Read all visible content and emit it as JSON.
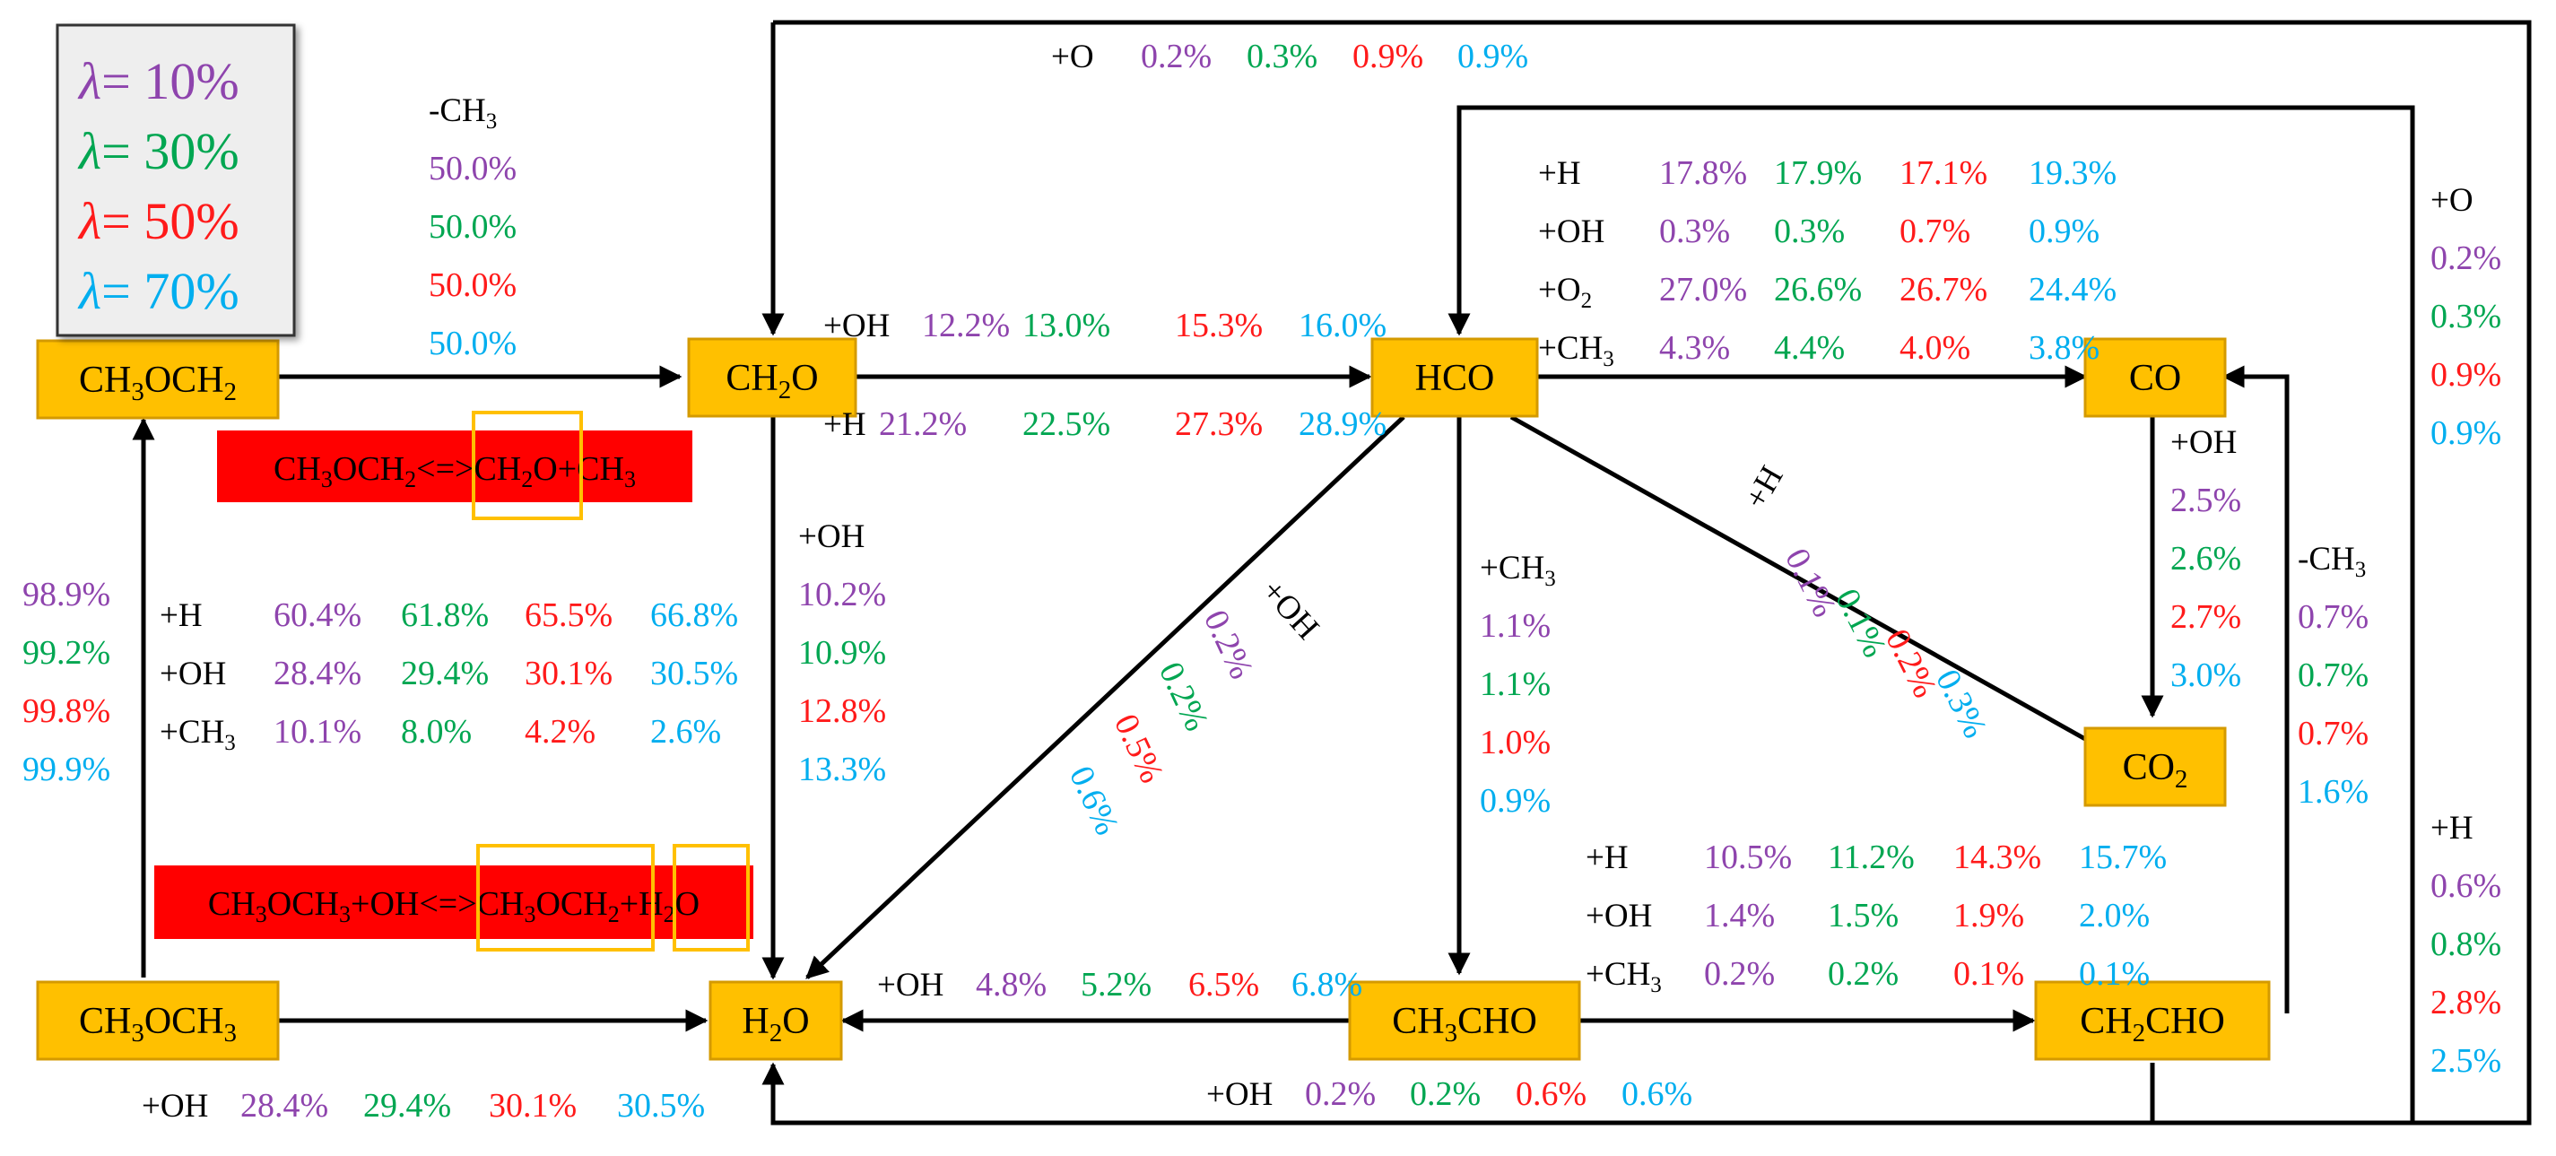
{
  "colors": {
    "l10": "#8e44ad",
    "l30": "#00a651",
    "l50": "#ff1a1a",
    "l70": "#00aeef",
    "label": "#000000",
    "species_fill": "#ffc000",
    "species_border": "#d49a00",
    "reaction_fill": "#ff0000",
    "highlight_box": "#ffc000",
    "legend_fill": "#eeeeee"
  },
  "legend": {
    "symbol": "λ",
    "entries": [
      "= 10%",
      "= 30%",
      "= 50%",
      "= 70%"
    ]
  },
  "species": {
    "ch3och2": "CH3OCH2",
    "ch2o": "CH2O",
    "hco": "HCO",
    "co": "CO",
    "co2": "CO2",
    "ch3och3": "CH3OCH3",
    "h2o": "H2O",
    "ch3cho": "CH3CHO",
    "ch2cho": "CH2CHO"
  },
  "reaction_boxes": {
    "top": "CH3OCH2<=>CH2O+CH3",
    "bottom": "CH3OCH3+OH<=>CH3OCH2+H2O"
  },
  "annotations": {
    "ch3och2_ch2o": {
      "label": "-CH3",
      "values": [
        "50.0%",
        "50.0%",
        "50.0%",
        "50.0%"
      ]
    },
    "ch2o_hco_oh": {
      "label": "+OH",
      "values": [
        "12.2%",
        "13.0%",
        "15.3%",
        "16.0%"
      ]
    },
    "ch2o_hco_h": {
      "label": "+H",
      "values": [
        "21.2%",
        "22.5%",
        "27.3%",
        "28.9%"
      ]
    },
    "top_o": {
      "label": "+O",
      "values": [
        "0.2%",
        "0.3%",
        "0.9%",
        "0.9%"
      ]
    },
    "hco_co": [
      {
        "label": "+H",
        "values": [
          "17.8%",
          "17.9%",
          "17.1%",
          "19.3%"
        ]
      },
      {
        "label": "+OH",
        "values": [
          "0.3%",
          "0.3%",
          "0.7%",
          "0.9%"
        ]
      },
      {
        "label": "+O2",
        "values": [
          "27.0%",
          "26.6%",
          "26.7%",
          "24.4%"
        ]
      },
      {
        "label": "+CH3",
        "values": [
          "4.3%",
          "4.4%",
          "4.0%",
          "3.8%"
        ]
      }
    ],
    "ch2cho_co_o": {
      "label": "+O",
      "values": [
        "0.2%",
        "0.3%",
        "0.9%",
        "0.9%"
      ]
    },
    "co_co2": {
      "label": "+OH",
      "values": [
        "2.5%",
        "2.6%",
        "2.7%",
        "3.0%"
      ]
    },
    "ch2cho_co_ch3": {
      "label": "-CH3",
      "values": [
        "0.7%",
        "0.7%",
        "0.7%",
        "1.6%"
      ]
    },
    "ch2cho_h2o_h": {
      "label": "+H",
      "values": [
        "0.6%",
        "0.8%",
        "2.8%",
        "2.5%"
      ]
    },
    "hco_co2": {
      "label": "+H",
      "values": [
        "0.1%",
        "0.1%",
        "0.2%",
        "0.3%"
      ]
    },
    "hco_h2o": {
      "label": "+OH",
      "values": [
        "0.2%",
        "0.2%",
        "0.5%",
        "0.6%"
      ]
    },
    "hco_ch3cho": {
      "label": "+CH3",
      "values": [
        "1.1%",
        "1.1%",
        "1.0%",
        "0.9%"
      ]
    },
    "ch2o_h2o": {
      "label": "+OH",
      "values": [
        "10.2%",
        "10.9%",
        "12.8%",
        "13.3%"
      ]
    },
    "ch3och3_ch3och2_left": {
      "values": [
        "98.9%",
        "99.2%",
        "99.8%",
        "99.9%"
      ]
    },
    "ch3och3_ch3och2": [
      {
        "label": "+H",
        "values": [
          "60.4%",
          "61.8%",
          "65.5%",
          "66.8%"
        ]
      },
      {
        "label": "+OH",
        "values": [
          "28.4%",
          "29.4%",
          "30.1%",
          "30.5%"
        ]
      },
      {
        "label": "+CH3",
        "values": [
          "10.1%",
          "8.0%",
          "4.2%",
          "2.6%"
        ]
      }
    ],
    "ch3och3_h2o": {
      "label": "+OH",
      "values": [
        "28.4%",
        "29.4%",
        "30.1%",
        "30.5%"
      ]
    },
    "ch3cho_h2o": {
      "label": "+OH",
      "values": [
        "4.8%",
        "5.2%",
        "6.5%",
        "6.8%"
      ]
    },
    "ch3cho_ch2cho": [
      {
        "label": "+H",
        "values": [
          "10.5%",
          "11.2%",
          "14.3%",
          "15.7%"
        ]
      },
      {
        "label": "+OH",
        "values": [
          "1.4%",
          "1.5%",
          "1.9%",
          "2.0%"
        ]
      },
      {
        "label": "+CH3",
        "values": [
          "0.2%",
          "0.2%",
          "0.1%",
          "0.1%"
        ]
      }
    ],
    "ch3cho_h2o_bottom": {
      "label": "+OH",
      "values": [
        "0.2%",
        "0.2%",
        "0.6%",
        "0.6%"
      ]
    }
  }
}
